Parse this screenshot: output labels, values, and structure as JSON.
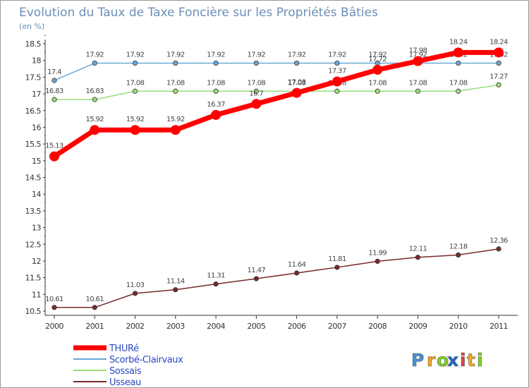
{
  "chart_data": {
    "type": "line",
    "title": "Evolution du Taux de Taxe Foncière sur les Propriétés Bâties",
    "ylabel": "(en %)",
    "xlabel": "",
    "ylim": [
      10.5,
      18.5
    ],
    "yticks": [
      "10.5",
      "11",
      "11.5",
      "12",
      "12.5",
      "13",
      "13.5",
      "14",
      "14.5",
      "15",
      "15.5",
      "16",
      "16.5",
      "17",
      "17.5",
      "18",
      "18.5"
    ],
    "categories": [
      "2000",
      "2001",
      "2002",
      "2003",
      "2004",
      "2005",
      "2006",
      "2007",
      "2008",
      "2009",
      "2010",
      "2011"
    ],
    "grid": false,
    "legend_position": "bottom-left",
    "series": [
      {
        "name": "THURé",
        "color": "#ff0000",
        "values": [
          15.13,
          15.92,
          15.92,
          15.92,
          16.37,
          16.7,
          17.03,
          17.37,
          17.72,
          17.98,
          18.24,
          18.24
        ],
        "labels": [
          "15.13",
          "15.92",
          "15.92",
          "15.92",
          "16.37",
          "16.7",
          "17.03",
          "17.37",
          "17.72",
          "17.98",
          "18.24",
          "18.24"
        ]
      },
      {
        "name": "Scorbé-Clairvaux",
        "color": "#6aa8d8",
        "values": [
          17.4,
          17.92,
          17.92,
          17.92,
          17.92,
          17.92,
          17.92,
          17.92,
          17.92,
          17.92,
          17.92,
          17.92
        ],
        "labels": [
          "17.4",
          "17.92",
          "17.92",
          "17.92",
          "17.92",
          "17.92",
          "17.92",
          "17.92",
          "17.92",
          "17.92",
          "17.92",
          "17.92"
        ]
      },
      {
        "name": "Sossais",
        "color": "#99dd77",
        "values": [
          16.83,
          16.83,
          17.08,
          17.08,
          17.08,
          17.08,
          17.08,
          17.08,
          17.08,
          17.08,
          17.08,
          17.27
        ],
        "labels": [
          "16.83",
          "16.83",
          "17.08",
          "17.08",
          "17.08",
          "17.08",
          "17.08",
          "17.08",
          "17.08",
          "17.08",
          "17.08",
          "17.27"
        ]
      },
      {
        "name": "Usseau",
        "color": "#7a2a2a",
        "values": [
          10.61,
          10.61,
          11.03,
          11.14,
          11.31,
          11.47,
          11.64,
          11.81,
          11.99,
          12.11,
          12.18,
          12.36
        ],
        "labels": [
          "10.61",
          "10.61",
          "11.03",
          "11.14",
          "11.31",
          "11.47",
          "11.64",
          "11.81",
          "11.99",
          "12.11",
          "12.18",
          "12.36"
        ]
      }
    ]
  },
  "branding": {
    "logo_text": "Proxiti",
    "letters": [
      "P",
      "r",
      "o",
      "x",
      "i",
      "t",
      "i"
    ],
    "letter_colors": [
      "#4a90d9",
      "#f5a623",
      "#7ed321",
      "#2266cc",
      "#e23d3d",
      "#f5a623",
      "#7ed321"
    ]
  },
  "colors": {
    "title": "#6b8fb8",
    "axis": "#333333",
    "legend_text": "#2a48c0"
  }
}
